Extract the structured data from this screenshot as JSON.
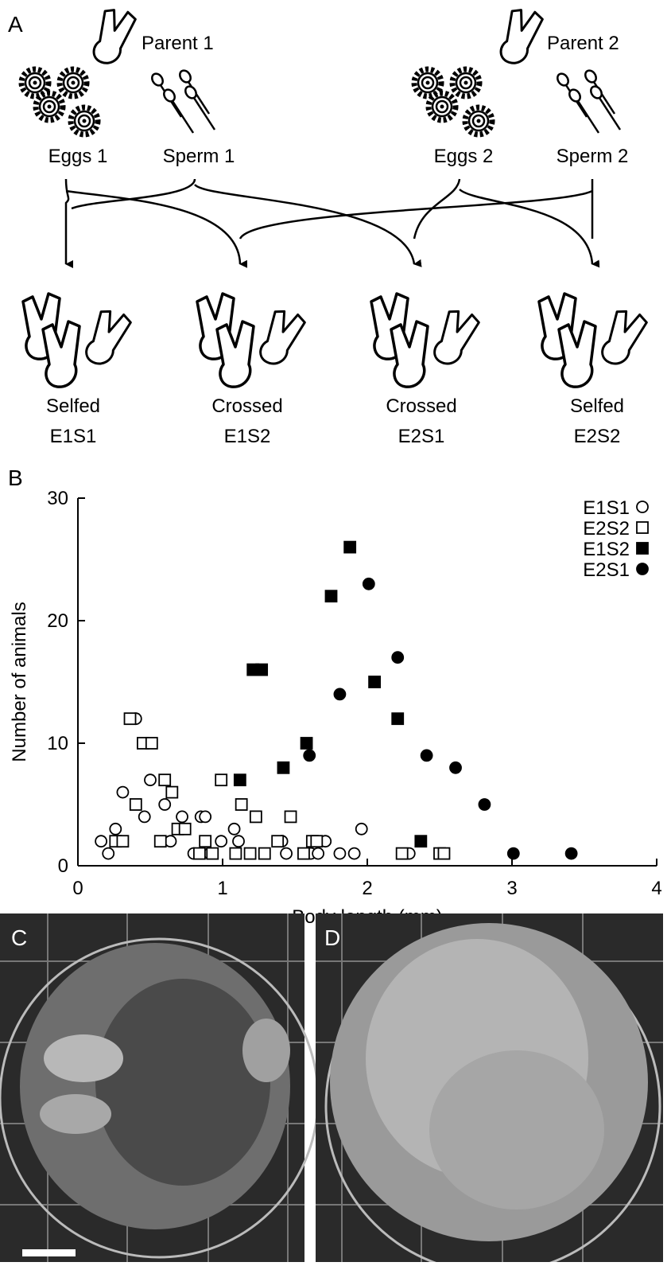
{
  "panel_a": {
    "label": "A",
    "parents": [
      {
        "name": "Parent 1",
        "eggs": "Eggs 1",
        "sperm": "Sperm 1"
      },
      {
        "name": "Parent 2",
        "eggs": "Eggs 2",
        "sperm": "Sperm 2"
      }
    ],
    "offspring": [
      {
        "kind": "Selfed",
        "code": "E1S1"
      },
      {
        "kind": "Crossed",
        "code": "E1S2"
      },
      {
        "kind": "Crossed",
        "code": "E2S1"
      },
      {
        "kind": "Selfed",
        "code": "E2S2"
      }
    ]
  },
  "chart_data": {
    "type": "scatter",
    "panel_label": "B",
    "xlabel": "Body length (mm)",
    "ylabel": "Number of animals",
    "xlim": [
      0,
      4
    ],
    "ylim": [
      0,
      30
    ],
    "xticks": [
      0,
      1,
      2,
      3,
      4
    ],
    "yticks": [
      0,
      10,
      20,
      30
    ],
    "legend": "upper right",
    "series": [
      {
        "name": "E1S1",
        "marker": "circle",
        "filled": false,
        "color": "#000000",
        "x": [
          0.16,
          0.21,
          0.26,
          0.31,
          0.4,
          0.46,
          0.5,
          0.6,
          0.64,
          0.72,
          0.8,
          0.85,
          0.88,
          0.91,
          0.99,
          1.08,
          1.11,
          1.41,
          1.44,
          1.61,
          1.66,
          1.71,
          1.81,
          1.91,
          1.96,
          2.29
        ],
        "values": [
          2,
          1,
          3,
          6,
          12,
          4,
          7,
          5,
          2,
          4,
          1,
          4,
          4,
          1,
          2,
          3,
          2,
          2,
          1,
          1,
          1,
          2,
          1,
          1,
          3,
          1
        ]
      },
      {
        "name": "E2S2",
        "marker": "square",
        "filled": false,
        "color": "#000000",
        "x": [
          0.26,
          0.31,
          0.36,
          0.4,
          0.45,
          0.51,
          0.57,
          0.6,
          0.65,
          0.69,
          0.74,
          0.84,
          0.88,
          0.93,
          0.99,
          1.09,
          1.13,
          1.19,
          1.23,
          1.29,
          1.38,
          1.47,
          1.56,
          1.62,
          1.65,
          2.24,
          2.5,
          2.53
        ],
        "values": [
          2,
          2,
          12,
          5,
          10,
          10,
          2,
          7,
          6,
          3,
          3,
          1,
          2,
          1,
          7,
          1,
          5,
          1,
          4,
          1,
          2,
          4,
          1,
          2,
          2,
          1,
          1,
          1
        ]
      },
      {
        "name": "E1S2",
        "marker": "square",
        "filled": true,
        "color": "#000000",
        "x": [
          1.12,
          1.21,
          1.27,
          1.42,
          1.58,
          1.75,
          1.88,
          2.05,
          2.21,
          2.37
        ],
        "values": [
          7,
          16,
          16,
          8,
          10,
          22,
          26,
          15,
          12,
          2
        ]
      },
      {
        "name": "E2S1",
        "marker": "circle",
        "filled": true,
        "color": "#000000",
        "x": [
          1.6,
          1.81,
          2.01,
          2.21,
          2.41,
          2.61,
          2.81,
          3.01,
          3.41
        ],
        "values": [
          9,
          14,
          23,
          17,
          9,
          8,
          5,
          1,
          1
        ]
      }
    ]
  },
  "panel_c": {
    "label": "C"
  },
  "panel_d": {
    "label": "D"
  }
}
